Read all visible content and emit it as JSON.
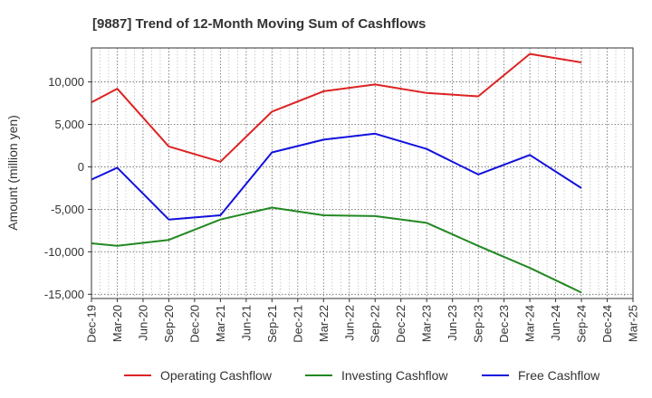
{
  "chart_data": {
    "type": "line",
    "title": "[9887]  Trend of 12-Month Moving Sum of Cashflows",
    "xlabel": "",
    "ylabel": "Amount (million yen)",
    "categories": [
      "Dec-19",
      "Mar-20",
      "Jun-20",
      "Sep-20",
      "Dec-20",
      "Mar-21",
      "Jun-21",
      "Sep-21",
      "Dec-21",
      "Mar-22",
      "Jun-22",
      "Sep-22",
      "Dec-22",
      "Mar-23",
      "Jun-23",
      "Sep-23",
      "Dec-23",
      "Mar-24",
      "Jun-24",
      "Sep-24",
      "Dec-24",
      "Mar-25"
    ],
    "ylim": [
      -15500,
      14000
    ],
    "yticks": [
      10000,
      5000,
      0,
      -5000,
      -10000,
      -15000
    ],
    "ytick_labels": [
      "10,000",
      "5,000",
      "0",
      "-5,000",
      "-10,000",
      "-15,000"
    ],
    "grid": true,
    "legend_position": "bottom",
    "series": [
      {
        "name": "Operating Cashflow",
        "color": "#dd2222",
        "points": [
          {
            "x": "Dec-19",
            "y": 7600
          },
          {
            "x": "Mar-20",
            "y": 9200
          },
          {
            "x": "Sep-20",
            "y": 2400
          },
          {
            "x": "Mar-21",
            "y": 600
          },
          {
            "x": "Sep-21",
            "y": 6500
          },
          {
            "x": "Mar-22",
            "y": 8900
          },
          {
            "x": "Sep-22",
            "y": 9700
          },
          {
            "x": "Mar-23",
            "y": 8700
          },
          {
            "x": "Sep-23",
            "y": 8300
          },
          {
            "x": "Mar-24",
            "y": 13300
          },
          {
            "x": "Sep-24",
            "y": 12300
          }
        ]
      },
      {
        "name": "Investing Cashflow",
        "color": "#228822",
        "points": [
          {
            "x": "Dec-19",
            "y": -9000
          },
          {
            "x": "Mar-20",
            "y": -9300
          },
          {
            "x": "Sep-20",
            "y": -8600
          },
          {
            "x": "Mar-21",
            "y": -6200
          },
          {
            "x": "Sep-21",
            "y": -4800
          },
          {
            "x": "Mar-22",
            "y": -5700
          },
          {
            "x": "Sep-22",
            "y": -5800
          },
          {
            "x": "Mar-23",
            "y": -6600
          },
          {
            "x": "Sep-23",
            "y": -9300
          },
          {
            "x": "Mar-24",
            "y": -11900
          },
          {
            "x": "Sep-24",
            "y": -14800
          }
        ]
      },
      {
        "name": "Free Cashflow",
        "color": "#1111dd",
        "points": [
          {
            "x": "Dec-19",
            "y": -1500
          },
          {
            "x": "Mar-20",
            "y": -100
          },
          {
            "x": "Sep-20",
            "y": -6200
          },
          {
            "x": "Mar-21",
            "y": -5700
          },
          {
            "x": "Sep-21",
            "y": 1700
          },
          {
            "x": "Mar-22",
            "y": 3200
          },
          {
            "x": "Sep-22",
            "y": 3900
          },
          {
            "x": "Mar-23",
            "y": 2100
          },
          {
            "x": "Sep-23",
            "y": -900
          },
          {
            "x": "Mar-24",
            "y": 1400
          },
          {
            "x": "Sep-24",
            "y": -2500
          }
        ]
      }
    ]
  }
}
